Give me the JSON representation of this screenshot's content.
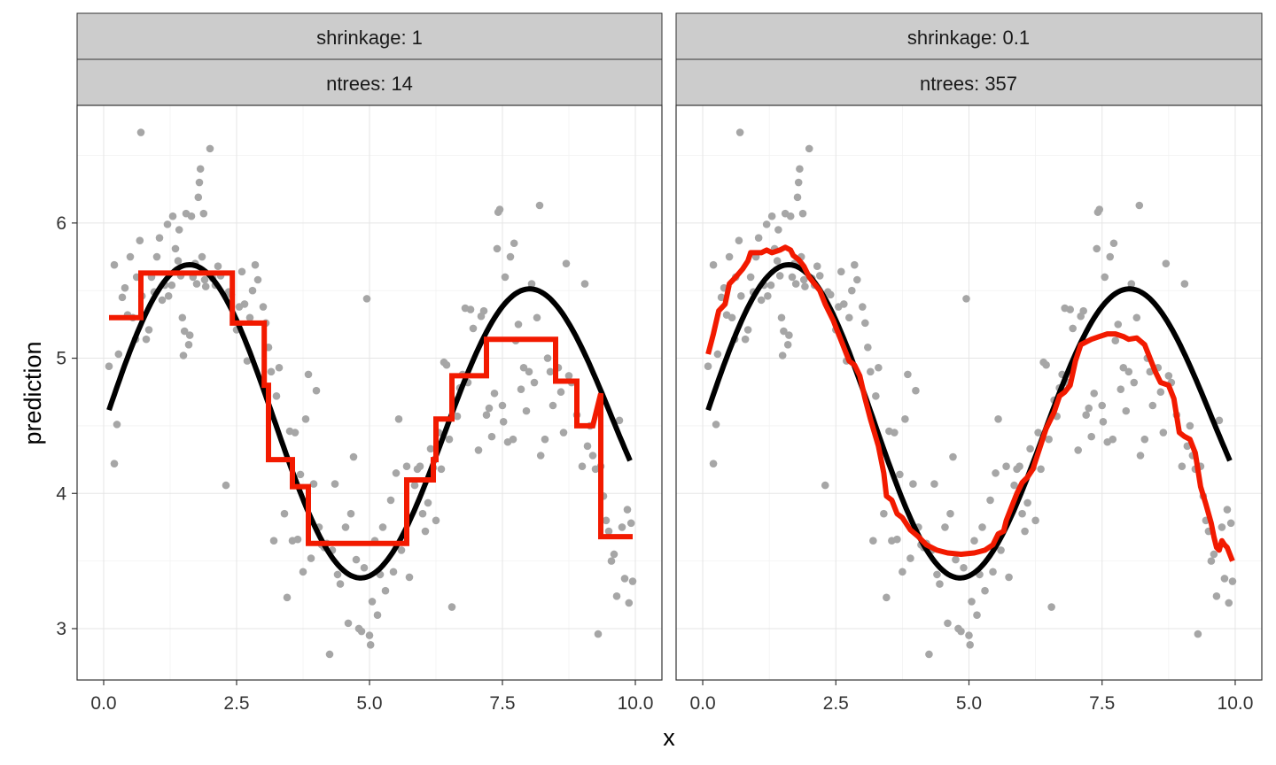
{
  "chart_data": {
    "type": "scatter",
    "xlabel": "x",
    "ylabel": "prediction",
    "xlim": [
      -0.5,
      10.5
    ],
    "ylim": [
      2.62,
      6.87
    ],
    "x_ticks": [
      0.0,
      2.5,
      5.0,
      7.5,
      10.0
    ],
    "x_tick_labels": [
      "0.0",
      "2.5",
      "5.0",
      "7.5",
      "10.0"
    ],
    "y_ticks": [
      3,
      4,
      5,
      6
    ],
    "y_tick_labels": [
      "3",
      "4",
      "5",
      "6"
    ],
    "grid": true,
    "colors": {
      "points": "#a6a6a6",
      "truth": "#000000",
      "fit": "#f21a00",
      "strip_bg": "#cccccc",
      "panel_border": "#333333",
      "grid": "#e5e5e5"
    },
    "points": [
      [
        0.1,
        4.94
      ],
      [
        0.2,
        5.69
      ],
      [
        0.25,
        4.51
      ],
      [
        0.28,
        5.03
      ],
      [
        0.2,
        4.22
      ],
      [
        0.35,
        5.45
      ],
      [
        0.4,
        5.52
      ],
      [
        0.45,
        5.32
      ],
      [
        0.5,
        5.75
      ],
      [
        0.55,
        5.3
      ],
      [
        0.6,
        5.14
      ],
      [
        0.62,
        5.6
      ],
      [
        0.68,
        5.87
      ],
      [
        0.7,
        6.67
      ],
      [
        0.72,
        5.46
      ],
      [
        0.8,
        5.14
      ],
      [
        0.85,
        5.21
      ],
      [
        0.9,
        5.6
      ],
      [
        0.95,
        5.49
      ],
      [
        1.0,
        5.75
      ],
      [
        1.05,
        5.89
      ],
      [
        1.1,
        5.43
      ],
      [
        1.15,
        5.54
      ],
      [
        1.2,
        5.99
      ],
      [
        1.22,
        5.46
      ],
      [
        1.28,
        5.54
      ],
      [
        1.3,
        6.05
      ],
      [
        1.35,
        5.81
      ],
      [
        1.4,
        5.72
      ],
      [
        1.42,
        5.95
      ],
      [
        1.45,
        5.61
      ],
      [
        1.48,
        5.3
      ],
      [
        1.5,
        5.02
      ],
      [
        1.52,
        5.2
      ],
      [
        1.55,
        6.07
      ],
      [
        1.6,
        5.1
      ],
      [
        1.62,
        5.17
      ],
      [
        1.65,
        6.05
      ],
      [
        1.68,
        5.6
      ],
      [
        1.72,
        5.7
      ],
      [
        1.75,
        5.55
      ],
      [
        1.78,
        6.19
      ],
      [
        1.8,
        6.3
      ],
      [
        1.82,
        6.4
      ],
      [
        1.85,
        5.75
      ],
      [
        1.88,
        6.07
      ],
      [
        1.9,
        5.58
      ],
      [
        1.92,
        5.53
      ],
      [
        2.0,
        6.55
      ],
      [
        2.05,
        5.59
      ],
      [
        2.1,
        5.54
      ],
      [
        2.15,
        5.68
      ],
      [
        2.2,
        5.61
      ],
      [
        2.3,
        4.06
      ],
      [
        2.35,
        5.49
      ],
      [
        2.4,
        5.47
      ],
      [
        2.5,
        5.21
      ],
      [
        2.55,
        5.38
      ],
      [
        2.6,
        5.64
      ],
      [
        2.65,
        5.4
      ],
      [
        2.7,
        4.98
      ],
      [
        2.75,
        5.3
      ],
      [
        2.8,
        5.5
      ],
      [
        2.85,
        5.69
      ],
      [
        2.9,
        5.58
      ],
      [
        3.0,
        5.38
      ],
      [
        3.05,
        5.26
      ],
      [
        3.1,
        5.08
      ],
      [
        3.15,
        4.9
      ],
      [
        3.2,
        3.65
      ],
      [
        3.25,
        4.72
      ],
      [
        3.3,
        4.93
      ],
      [
        3.4,
        3.85
      ],
      [
        3.45,
        3.23
      ],
      [
        3.5,
        4.46
      ],
      [
        3.55,
        3.65
      ],
      [
        3.6,
        4.45
      ],
      [
        3.65,
        3.66
      ],
      [
        3.7,
        4.14
      ],
      [
        3.75,
        3.42
      ],
      [
        3.8,
        4.55
      ],
      [
        3.85,
        4.88
      ],
      [
        3.9,
        3.52
      ],
      [
        3.95,
        4.07
      ],
      [
        4.0,
        4.76
      ],
      [
        4.05,
        3.75
      ],
      [
        4.1,
        3.62
      ],
      [
        4.15,
        3.6
      ],
      [
        4.2,
        3.63
      ],
      [
        4.25,
        2.81
      ],
      [
        4.3,
        3.58
      ],
      [
        4.35,
        4.07
      ],
      [
        4.4,
        3.4
      ],
      [
        4.45,
        3.33
      ],
      [
        4.55,
        3.75
      ],
      [
        4.6,
        3.04
      ],
      [
        4.65,
        3.85
      ],
      [
        4.7,
        4.27
      ],
      [
        4.75,
        3.51
      ],
      [
        4.8,
        3.0
      ],
      [
        4.85,
        2.98
      ],
      [
        4.9,
        3.45
      ],
      [
        4.95,
        5.44
      ],
      [
        5.0,
        2.95
      ],
      [
        5.02,
        2.88
      ],
      [
        5.05,
        3.2
      ],
      [
        5.1,
        3.65
      ],
      [
        5.15,
        3.1
      ],
      [
        5.2,
        3.4
      ],
      [
        5.25,
        3.75
      ],
      [
        5.3,
        3.28
      ],
      [
        5.4,
        3.95
      ],
      [
        5.45,
        3.42
      ],
      [
        5.5,
        4.15
      ],
      [
        5.55,
        4.55
      ],
      [
        5.6,
        3.58
      ],
      [
        5.7,
        4.2
      ],
      [
        5.75,
        3.38
      ],
      [
        5.85,
        4.06
      ],
      [
        5.9,
        4.18
      ],
      [
        5.95,
        4.2
      ],
      [
        6.0,
        3.85
      ],
      [
        6.05,
        3.72
      ],
      [
        6.1,
        3.93
      ],
      [
        6.15,
        4.33
      ],
      [
        6.2,
        4.19
      ],
      [
        6.25,
        3.8
      ],
      [
        6.3,
        4.45
      ],
      [
        6.35,
        4.18
      ],
      [
        6.4,
        4.97
      ],
      [
        6.45,
        4.95
      ],
      [
        6.5,
        4.4
      ],
      [
        6.55,
        3.16
      ],
      [
        6.6,
        4.69
      ],
      [
        6.65,
        4.57
      ],
      [
        6.7,
        4.78
      ],
      [
        6.75,
        4.88
      ],
      [
        6.8,
        5.37
      ],
      [
        6.85,
        4.82
      ],
      [
        6.9,
        5.36
      ],
      [
        6.95,
        5.22
      ],
      [
        7.05,
        4.32
      ],
      [
        7.1,
        5.31
      ],
      [
        7.15,
        5.35
      ],
      [
        7.2,
        4.58
      ],
      [
        7.25,
        4.63
      ],
      [
        7.3,
        4.42
      ],
      [
        7.35,
        4.74
      ],
      [
        7.4,
        5.81
      ],
      [
        7.42,
        6.08
      ],
      [
        7.45,
        6.1
      ],
      [
        7.5,
        4.65
      ],
      [
        7.52,
        4.53
      ],
      [
        7.55,
        5.6
      ],
      [
        7.6,
        4.38
      ],
      [
        7.65,
        5.75
      ],
      [
        7.7,
        4.4
      ],
      [
        7.72,
        5.85
      ],
      [
        7.75,
        5.13
      ],
      [
        7.8,
        5.25
      ],
      [
        7.85,
        4.77
      ],
      [
        7.9,
        4.93
      ],
      [
        7.95,
        4.61
      ],
      [
        8.0,
        4.9
      ],
      [
        8.05,
        5.55
      ],
      [
        8.1,
        4.82
      ],
      [
        8.15,
        5.3
      ],
      [
        8.2,
        6.13
      ],
      [
        8.22,
        4.28
      ],
      [
        8.3,
        4.4
      ],
      [
        8.35,
        5.0
      ],
      [
        8.4,
        4.9
      ],
      [
        8.45,
        4.65
      ],
      [
        8.55,
        4.93
      ],
      [
        8.6,
        4.75
      ],
      [
        8.65,
        4.45
      ],
      [
        8.7,
        5.7
      ],
      [
        8.75,
        4.87
      ],
      [
        8.8,
        4.82
      ],
      [
        8.9,
        4.58
      ],
      [
        9.0,
        4.2
      ],
      [
        9.05,
        5.55
      ],
      [
        9.1,
        4.35
      ],
      [
        9.15,
        4.5
      ],
      [
        9.2,
        4.28
      ],
      [
        9.25,
        4.18
      ],
      [
        9.3,
        2.96
      ],
      [
        9.35,
        4.2
      ],
      [
        9.4,
        3.98
      ],
      [
        9.45,
        3.8
      ],
      [
        9.5,
        3.72
      ],
      [
        9.55,
        3.5
      ],
      [
        9.6,
        3.55
      ],
      [
        9.65,
        3.24
      ],
      [
        9.7,
        4.54
      ],
      [
        9.75,
        3.75
      ],
      [
        9.8,
        3.37
      ],
      [
        9.85,
        3.88
      ],
      [
        9.88,
        3.19
      ],
      [
        9.92,
        3.78
      ],
      [
        9.95,
        3.35
      ]
    ],
    "truth": {
      "name": "",
      "formula": "y = 4.5 + sin(x) + 0.2*sin(0.8x)"
    },
    "panels": [
      {
        "strip_top": "shrinkage: 1",
        "strip_bottom": "ntrees: 14",
        "fit": [
          [
            0.1,
            5.3
          ],
          [
            0.7,
            5.3
          ],
          [
            0.7,
            5.63
          ],
          [
            2.42,
            5.63
          ],
          [
            2.42,
            5.26
          ],
          [
            3.02,
            5.26
          ],
          [
            3.02,
            4.8
          ],
          [
            3.1,
            4.8
          ],
          [
            3.1,
            4.25
          ],
          [
            3.55,
            4.25
          ],
          [
            3.55,
            4.05
          ],
          [
            3.85,
            4.05
          ],
          [
            3.85,
            3.63
          ],
          [
            5.7,
            3.63
          ],
          [
            5.7,
            4.1
          ],
          [
            6.2,
            4.1
          ],
          [
            6.2,
            4.25
          ],
          [
            6.25,
            4.25
          ],
          [
            6.25,
            4.55
          ],
          [
            6.55,
            4.55
          ],
          [
            6.55,
            4.87
          ],
          [
            7.2,
            4.87
          ],
          [
            7.2,
            5.14
          ],
          [
            8.5,
            5.14
          ],
          [
            8.5,
            4.83
          ],
          [
            8.9,
            4.83
          ],
          [
            8.9,
            4.5
          ],
          [
            9.2,
            4.5
          ],
          [
            9.35,
            4.74
          ],
          [
            9.35,
            3.68
          ],
          [
            9.95,
            3.68
          ]
        ]
      },
      {
        "strip_top": "shrinkage: 0.1",
        "strip_bottom": "ntrees: 357",
        "fit": [
          [
            0.1,
            5.03
          ],
          [
            0.2,
            5.18
          ],
          [
            0.3,
            5.35
          ],
          [
            0.42,
            5.4
          ],
          [
            0.5,
            5.55
          ],
          [
            0.62,
            5.6
          ],
          [
            0.75,
            5.66
          ],
          [
            0.85,
            5.72
          ],
          [
            0.9,
            5.78
          ],
          [
            1.1,
            5.78
          ],
          [
            1.2,
            5.8
          ],
          [
            1.3,
            5.78
          ],
          [
            1.45,
            5.8
          ],
          [
            1.55,
            5.82
          ],
          [
            1.65,
            5.8
          ],
          [
            1.7,
            5.76
          ],
          [
            1.8,
            5.73
          ],
          [
            1.9,
            5.68
          ],
          [
            2.0,
            5.6
          ],
          [
            2.1,
            5.55
          ],
          [
            2.2,
            5.5
          ],
          [
            2.3,
            5.4
          ],
          [
            2.45,
            5.28
          ],
          [
            2.55,
            5.18
          ],
          [
            2.65,
            5.08
          ],
          [
            2.75,
            4.98
          ],
          [
            2.85,
            4.95
          ],
          [
            2.95,
            4.87
          ],
          [
            3.05,
            4.7
          ],
          [
            3.15,
            4.55
          ],
          [
            3.3,
            4.35
          ],
          [
            3.4,
            4.15
          ],
          [
            3.45,
            3.98
          ],
          [
            3.55,
            3.95
          ],
          [
            3.65,
            3.85
          ],
          [
            3.75,
            3.82
          ],
          [
            3.9,
            3.73
          ],
          [
            4.05,
            3.68
          ],
          [
            4.2,
            3.62
          ],
          [
            4.4,
            3.58
          ],
          [
            4.6,
            3.56
          ],
          [
            4.85,
            3.55
          ],
          [
            5.1,
            3.56
          ],
          [
            5.3,
            3.58
          ],
          [
            5.45,
            3.62
          ],
          [
            5.55,
            3.7
          ],
          [
            5.65,
            3.72
          ],
          [
            5.7,
            3.8
          ],
          [
            5.8,
            3.9
          ],
          [
            5.9,
            4.0
          ],
          [
            6.0,
            4.08
          ],
          [
            6.1,
            4.12
          ],
          [
            6.2,
            4.18
          ],
          [
            6.3,
            4.3
          ],
          [
            6.45,
            4.48
          ],
          [
            6.6,
            4.6
          ],
          [
            6.7,
            4.72
          ],
          [
            6.8,
            4.75
          ],
          [
            6.9,
            4.8
          ],
          [
            7.0,
            4.98
          ],
          [
            7.1,
            5.1
          ],
          [
            7.2,
            5.12
          ],
          [
            7.3,
            5.14
          ],
          [
            7.45,
            5.16
          ],
          [
            7.6,
            5.18
          ],
          [
            7.75,
            5.18
          ],
          [
            7.9,
            5.16
          ],
          [
            8.0,
            5.14
          ],
          [
            8.15,
            5.15
          ],
          [
            8.3,
            5.1
          ],
          [
            8.4,
            5.0
          ],
          [
            8.5,
            4.9
          ],
          [
            8.6,
            4.82
          ],
          [
            8.75,
            4.8
          ],
          [
            8.85,
            4.7
          ],
          [
            8.95,
            4.45
          ],
          [
            9.05,
            4.42
          ],
          [
            9.15,
            4.4
          ],
          [
            9.25,
            4.3
          ],
          [
            9.35,
            4.05
          ],
          [
            9.45,
            3.92
          ],
          [
            9.55,
            3.78
          ],
          [
            9.6,
            3.68
          ],
          [
            9.65,
            3.6
          ],
          [
            9.7,
            3.58
          ],
          [
            9.75,
            3.65
          ],
          [
            9.8,
            3.62
          ],
          [
            9.85,
            3.6
          ],
          [
            9.95,
            3.5
          ]
        ]
      }
    ]
  }
}
